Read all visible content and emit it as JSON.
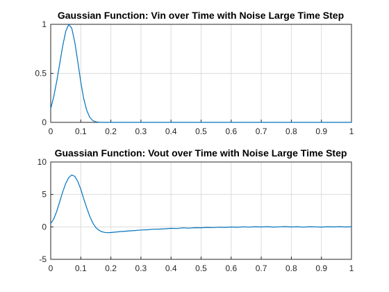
{
  "chart_data": [
    {
      "type": "line",
      "title": "Gaussian Function: Vin over Time with Noise Large Time Step",
      "xlabel": "",
      "ylabel": "",
      "xlim": [
        0,
        1
      ],
      "ylim": [
        0,
        1
      ],
      "grid": true,
      "x_ticks": [
        "0",
        "0.1",
        "0.2",
        "0.3",
        "0.4",
        "0.5",
        "0.6",
        "0.7",
        "0.8",
        "0.9",
        "1"
      ],
      "y_ticks": [
        "0",
        "0.5",
        "1"
      ],
      "color": "#0072bd",
      "series": [
        {
          "x": [
            0,
            0.01,
            0.02,
            0.03,
            0.04,
            0.05,
            0.06,
            0.07,
            0.08,
            0.09,
            0.1,
            0.11,
            0.12,
            0.13,
            0.14,
            0.15,
            0.16,
            0.17,
            0.2,
            0.3,
            0.4,
            0.5,
            0.6,
            0.7,
            0.8,
            0.9,
            1.0
          ],
          "y": [
            0.14,
            0.26,
            0.42,
            0.6,
            0.78,
            0.93,
            1.0,
            0.96,
            0.82,
            0.62,
            0.41,
            0.24,
            0.12,
            0.05,
            0.018,
            0.006,
            0.002,
            0.0,
            0.0,
            0.0,
            0.0,
            0.0,
            0.0,
            0.0,
            0.0,
            0.0,
            0.0
          ]
        }
      ]
    },
    {
      "type": "line",
      "title": "Guassian Function: Vout over Time with Noise Large Time Step",
      "xlabel": "",
      "ylabel": "",
      "xlim": [
        0,
        1
      ],
      "ylim": [
        -5,
        10
      ],
      "grid": true,
      "x_ticks": [
        "0",
        "0.1",
        "0.2",
        "0.3",
        "0.4",
        "0.5",
        "0.6",
        "0.7",
        "0.8",
        "0.9",
        "1"
      ],
      "y_ticks": [
        "-5",
        "0",
        "5",
        "10"
      ],
      "color": "#0072bd",
      "series": [
        {
          "x": [
            0,
            0.01,
            0.02,
            0.03,
            0.04,
            0.05,
            0.06,
            0.07,
            0.08,
            0.09,
            0.1,
            0.11,
            0.12,
            0.13,
            0.14,
            0.15,
            0.16,
            0.17,
            0.18,
            0.19,
            0.2,
            0.21,
            0.22,
            0.23,
            0.24,
            0.25,
            0.26,
            0.27,
            0.28,
            0.29,
            0.3,
            0.32,
            0.34,
            0.36,
            0.38,
            0.4,
            0.42,
            0.44,
            0.46,
            0.48,
            0.5,
            0.52,
            0.54,
            0.56,
            0.58,
            0.6,
            0.62,
            0.64,
            0.66,
            0.68,
            0.7,
            0.72,
            0.74,
            0.76,
            0.78,
            0.8,
            0.82,
            0.84,
            0.86,
            0.88,
            0.9,
            0.92,
            0.94,
            0.96,
            0.98,
            1.0
          ],
          "y": [
            0.5,
            1.2,
            2.4,
            3.9,
            5.4,
            6.7,
            7.6,
            8.0,
            7.8,
            7.0,
            5.8,
            4.3,
            2.9,
            1.6,
            0.6,
            -0.1,
            -0.5,
            -0.75,
            -0.85,
            -0.9,
            -0.88,
            -0.82,
            -0.78,
            -0.72,
            -0.7,
            -0.66,
            -0.62,
            -0.6,
            -0.56,
            -0.52,
            -0.48,
            -0.45,
            -0.36,
            -0.34,
            -0.3,
            -0.22,
            -0.25,
            -0.15,
            -0.2,
            -0.12,
            -0.14,
            -0.08,
            -0.1,
            -0.05,
            -0.08,
            -0.02,
            -0.06,
            0.0,
            -0.04,
            0.02,
            -0.02,
            0.04,
            -0.03,
            0.0,
            0.05,
            -0.02,
            0.03,
            -0.04,
            0.02,
            0.0,
            -0.03,
            0.03,
            -0.01,
            0.04,
            -0.02,
            0.02
          ]
        }
      ]
    }
  ]
}
